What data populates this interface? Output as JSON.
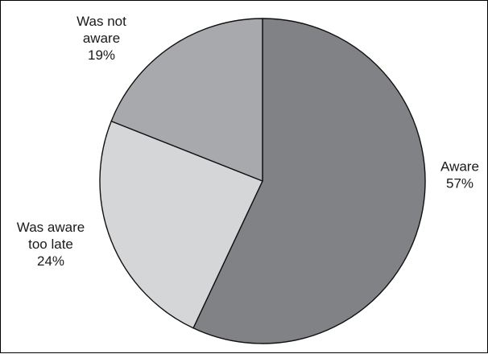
{
  "chart_data": {
    "type": "pie",
    "start_angle_deg": 0,
    "direction": "clockwise",
    "legend": "none",
    "slices": [
      {
        "label_lines": [
          "Aware",
          "57%"
        ],
        "value": 57,
        "color": "#818285"
      },
      {
        "label_lines": [
          "Was aware",
          "too late",
          "24%"
        ],
        "value": 24,
        "color": "#d5d6d8"
      },
      {
        "label_lines": [
          "Was not",
          "aware",
          "19%"
        ],
        "value": 19,
        "color": "#a8a9ac"
      }
    ]
  }
}
